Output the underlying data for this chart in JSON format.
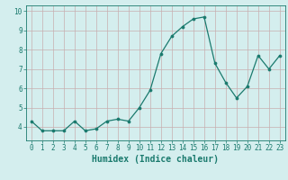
{
  "x": [
    0,
    1,
    2,
    3,
    4,
    5,
    6,
    7,
    8,
    9,
    10,
    11,
    12,
    13,
    14,
    15,
    16,
    17,
    18,
    19,
    20,
    21,
    22,
    23
  ],
  "y": [
    4.3,
    3.8,
    3.8,
    3.8,
    4.3,
    3.8,
    3.9,
    4.3,
    4.4,
    4.3,
    5.0,
    5.9,
    7.8,
    8.7,
    9.2,
    9.6,
    9.7,
    7.3,
    6.3,
    5.5,
    6.1,
    7.7,
    7.0,
    7.7
  ],
  "line_color": "#1a7a6e",
  "marker_color": "#1a7a6e",
  "bg_color": "#d4eeee",
  "grid_color": "#c8aeb0",
  "xlabel": "Humidex (Indice chaleur)",
  "ylim": [
    3.3,
    10.3
  ],
  "xlim": [
    -0.5,
    23.5
  ],
  "yticks": [
    4,
    5,
    6,
    7,
    8,
    9,
    10
  ],
  "xticks": [
    0,
    1,
    2,
    3,
    4,
    5,
    6,
    7,
    8,
    9,
    10,
    11,
    12,
    13,
    14,
    15,
    16,
    17,
    18,
    19,
    20,
    21,
    22,
    23
  ],
  "tick_label_fontsize": 5.5,
  "xlabel_fontsize": 7,
  "linewidth": 0.9,
  "markersize": 2.2
}
